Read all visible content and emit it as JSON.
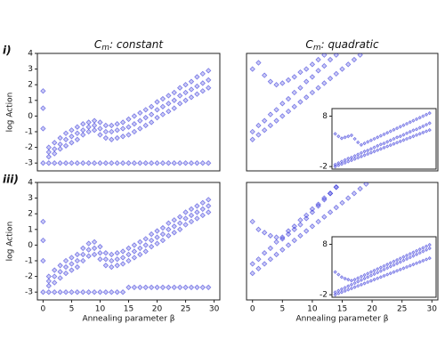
{
  "chart_data": [
    {
      "type": "scatter",
      "panel_label": "i)",
      "title_symbol": "C",
      "title_subscript": "m",
      "title": ": constant",
      "ylabel": "log Action",
      "color": "#2f2fd8",
      "x": [
        0,
        1,
        2,
        3,
        4,
        5,
        6,
        7,
        8,
        9,
        10,
        11,
        12,
        13,
        14,
        15,
        16,
        17,
        18,
        19,
        20,
        21,
        22,
        23,
        24,
        25,
        26,
        27,
        28,
        29
      ],
      "xlim": [
        -1,
        31
      ],
      "ylim": [
        -3.5,
        4
      ],
      "yticks": [
        -3,
        -2,
        -1,
        0,
        1,
        2,
        3,
        4
      ],
      "series": [
        {
          "values": [
            -3,
            -3,
            -3,
            -3,
            -3,
            -3,
            -3,
            -3,
            -3,
            -3,
            -3,
            -3,
            -3,
            -3,
            -3,
            -3,
            -3,
            -3,
            -3,
            -3,
            -3,
            -3,
            -3,
            -3,
            -3,
            -3,
            -3,
            -3,
            -3,
            -3
          ]
        },
        {
          "values": [
            0.5,
            -2.3,
            -2.1,
            -1.8,
            -1.5,
            -1.3,
            -1.1,
            -0.9,
            -0.7,
            -0.6,
            -0.8,
            -1.0,
            -1.0,
            -0.9,
            -0.8,
            -0.7,
            -0.5,
            -0.3,
            -0.1,
            0.1,
            0.4,
            0.6,
            0.8,
            1.0,
            1.3,
            1.5,
            1.7,
            1.9,
            2.1,
            2.3
          ]
        },
        {
          "values": [
            1.6,
            -2.0,
            -1.7,
            -1.4,
            -1.1,
            -0.9,
            -0.7,
            -0.5,
            -0.4,
            -0.3,
            -0.4,
            -0.6,
            -0.6,
            -0.5,
            -0.4,
            -0.2,
            0.0,
            0.2,
            0.4,
            0.6,
            0.9,
            1.1,
            1.3,
            1.5,
            1.8,
            2.0,
            2.2,
            2.5,
            2.7,
            2.9
          ]
        },
        {
          "values": [
            -0.8,
            -2.6,
            -2.4,
            -2.1,
            -1.9,
            -1.7,
            -1.5,
            -1.2,
            -1.0,
            -0.9,
            -1.2,
            -1.4,
            -1.5,
            -1.4,
            -1.3,
            -1.2,
            -1.0,
            -0.8,
            -0.6,
            -0.4,
            -0.1,
            0.1,
            0.3,
            0.5,
            0.8,
            1.0,
            1.2,
            1.4,
            1.6,
            1.8
          ]
        }
      ]
    },
    {
      "type": "scatter",
      "title_symbol": "C",
      "title_subscript": "m",
      "title": ": quadratic",
      "color": "#2f2fd8",
      "x": [
        0,
        1,
        2,
        3,
        4,
        5,
        6,
        7,
        8,
        9,
        10,
        11,
        12,
        13,
        14,
        15,
        16,
        17,
        18,
        19,
        20,
        21,
        22,
        23,
        24,
        25,
        26,
        27,
        28,
        29
      ],
      "xlim": [
        -1,
        31
      ],
      "ylim": [
        -3.5,
        4
      ],
      "series": [
        {
          "values": [
            -1.5,
            -1.2,
            -0.9,
            -0.6,
            -0.3,
            0.0,
            0.3,
            0.6,
            0.9,
            1.2,
            1.5,
            1.8,
            2.1,
            2.4,
            2.7,
            3.0,
            3.3,
            3.6,
            3.9,
            null,
            null,
            null,
            null,
            null,
            null,
            null,
            null,
            null,
            null,
            null
          ]
        },
        {
          "values": [
            -1.0,
            -0.6,
            -0.3,
            0.1,
            0.4,
            0.8,
            1.1,
            1.5,
            1.8,
            2.2,
            2.5,
            2.9,
            3.2,
            3.6,
            3.9,
            null,
            null,
            null,
            null,
            null,
            null,
            null,
            null,
            null,
            null,
            null,
            null,
            null,
            null,
            null
          ]
        },
        {
          "values": [
            3.0,
            3.4,
            2.6,
            2.2,
            2.0,
            2.1,
            2.3,
            2.5,
            2.8,
            3.0,
            3.3,
            3.6,
            3.9,
            null,
            null,
            null,
            null,
            null,
            null,
            null,
            null,
            null,
            null,
            null,
            null,
            null,
            null,
            null,
            null,
            null
          ]
        }
      ],
      "inset": {
        "type": "scatter",
        "color": "#2f2fd8",
        "x": [
          0,
          1,
          2,
          3,
          4,
          5,
          6,
          7,
          8,
          9,
          10,
          11,
          12,
          13,
          14,
          15,
          16,
          17,
          18,
          19,
          20,
          21,
          22,
          23,
          24,
          25,
          26,
          27,
          28,
          29
        ],
        "xlim": [
          -1,
          31
        ],
        "ylim": [
          -2.5,
          9.5
        ],
        "yticks": [
          -2,
          8
        ],
        "series": [
          {
            "values": [
              -2.0,
              -1.75,
              -1.5,
              -1.25,
              -1.0,
              -0.75,
              -0.5,
              -0.25,
              0.0,
              0.25,
              0.5,
              0.75,
              1.0,
              1.25,
              1.5,
              1.75,
              2.0,
              2.25,
              2.5,
              2.75,
              3.0,
              3.25,
              3.5,
              3.75,
              4.0,
              4.25,
              4.5,
              4.75,
              5.0,
              5.25
            ]
          },
          {
            "values": [
              -1.6,
              -1.3,
              -1.0,
              -0.7,
              -0.4,
              -0.2,
              0.1,
              0.4,
              0.7,
              1.0,
              1.2,
              1.5,
              1.8,
              2.1,
              2.4,
              2.6,
              2.9,
              3.2,
              3.5,
              3.8,
              4.0,
              4.3,
              4.6,
              4.9,
              5.2,
              5.4,
              5.7,
              6.0,
              6.3,
              6.6
            ]
          },
          {
            "values": [
              4.5,
              4.0,
              3.6,
              3.8,
              4.0,
              4.2,
              3.5,
              2.8,
              2.3,
              2.6,
              2.9,
              3.2,
              3.5,
              3.8,
              4.1,
              4.4,
              4.7,
              5.0,
              5.3,
              5.6,
              5.9,
              6.2,
              6.5,
              6.8,
              7.1,
              7.4,
              7.7,
              8.0,
              8.3,
              8.6
            ]
          }
        ]
      }
    },
    {
      "type": "scatter",
      "panel_label": "iii)",
      "ylabel": "log Action",
      "xlabel": "Annealing parameter β",
      "color": "#2f2fd8",
      "x": [
        0,
        1,
        2,
        3,
        4,
        5,
        6,
        7,
        8,
        9,
        10,
        11,
        12,
        13,
        14,
        15,
        16,
        17,
        18,
        19,
        20,
        21,
        22,
        23,
        24,
        25,
        26,
        27,
        28,
        29
      ],
      "xlim": [
        -1,
        31
      ],
      "ylim": [
        -3.5,
        4
      ],
      "yticks": [
        -3,
        -2,
        -1,
        0,
        1,
        2,
        3,
        4
      ],
      "xticks": [
        0,
        5,
        10,
        15,
        20,
        25,
        30
      ],
      "series": [
        {
          "values": [
            -3,
            -3,
            -3,
            -3,
            -3,
            -3,
            -3,
            -3,
            -3,
            -3,
            -3,
            -3,
            -3,
            -3,
            -3,
            -2.7,
            -2.7,
            -2.7,
            -2.7,
            -2.7,
            -2.7,
            -2.7,
            -2.7,
            -2.7,
            -2.7,
            -2.7,
            -2.7,
            -2.7,
            -2.7,
            -2.7
          ]
        },
        {
          "values": [
            0.3,
            -2.3,
            -2.0,
            -1.7,
            -1.4,
            -1.2,
            -1.0,
            -0.6,
            -0.3,
            -0.2,
            -0.5,
            -0.9,
            -1.0,
            -0.9,
            -0.8,
            -0.6,
            -0.4,
            -0.2,
            0.0,
            0.3,
            0.5,
            0.7,
            1.0,
            1.2,
            1.4,
            1.7,
            1.9,
            2.1,
            2.3,
            2.5
          ]
        },
        {
          "values": [
            1.5,
            -2.0,
            -1.6,
            -1.3,
            -1.0,
            -0.8,
            -0.6,
            -0.2,
            0.1,
            0.2,
            -0.1,
            -0.5,
            -0.6,
            -0.5,
            -0.4,
            -0.2,
            0.0,
            0.2,
            0.4,
            0.7,
            0.9,
            1.1,
            1.4,
            1.6,
            1.8,
            2.1,
            2.3,
            2.5,
            2.7,
            2.9
          ]
        },
        {
          "values": [
            -1.0,
            -2.6,
            -2.4,
            -2.1,
            -1.8,
            -1.6,
            -1.4,
            -1.0,
            -0.7,
            -0.6,
            -0.9,
            -1.3,
            -1.4,
            -1.3,
            -1.2,
            -1.0,
            -0.8,
            -0.6,
            -0.4,
            -0.1,
            0.1,
            0.3,
            0.6,
            0.8,
            1.0,
            1.3,
            1.5,
            1.7,
            1.9,
            2.1
          ]
        }
      ]
    },
    {
      "type": "scatter",
      "xlabel": "Annealing parameter β",
      "color": "#2f2fd8",
      "x": [
        0,
        1,
        2,
        3,
        4,
        5,
        6,
        7,
        8,
        9,
        10,
        11,
        12,
        13,
        14,
        15,
        16,
        17,
        18,
        19,
        20,
        21,
        22,
        23,
        24,
        25,
        26,
        27,
        28,
        29
      ],
      "xlim": [
        -1,
        31
      ],
      "ylim": [
        -3.5,
        4
      ],
      "xticks": [
        0,
        5,
        10,
        15,
        20,
        25,
        30
      ],
      "series": [
        {
          "values": [
            -1.8,
            -1.5,
            -1.2,
            -0.9,
            -0.6,
            -0.3,
            0.0,
            0.3,
            0.6,
            0.9,
            1.2,
            1.5,
            1.8,
            2.1,
            2.4,
            2.7,
            3.0,
            3.3,
            3.6,
            3.9,
            null,
            null,
            null,
            null,
            null,
            null,
            null,
            null,
            null,
            null
          ]
        },
        {
          "values": [
            -1.2,
            -0.9,
            -0.5,
            -0.2,
            0.2,
            0.5,
            0.9,
            1.2,
            1.6,
            1.9,
            2.3,
            2.6,
            3.0,
            3.3,
            3.7,
            null,
            null,
            null,
            null,
            null,
            null,
            null,
            null,
            null,
            null,
            null,
            null,
            null,
            null,
            null
          ]
        },
        {
          "values": [
            1.5,
            1.0,
            0.8,
            0.6,
            0.5,
            0.4,
            0.7,
            1.0,
            1.3,
            1.7,
            2.1,
            2.5,
            2.9,
            3.3,
            3.7,
            null,
            null,
            null,
            null,
            null,
            null,
            null,
            null,
            null,
            null,
            null,
            null,
            null,
            null,
            null
          ]
        }
      ],
      "inset": {
        "type": "scatter",
        "color": "#2f2fd8",
        "x": [
          0,
          1,
          2,
          3,
          4,
          5,
          6,
          7,
          8,
          9,
          10,
          11,
          12,
          13,
          14,
          15,
          16,
          17,
          18,
          19,
          20,
          21,
          22,
          23,
          24,
          25,
          26,
          27,
          28,
          29
        ],
        "xlim": [
          -1,
          31
        ],
        "ylim": [
          -2.5,
          9.5
        ],
        "yticks": [
          -2,
          8
        ],
        "series": [
          {
            "values": [
              -2.0,
              -1.75,
              -1.5,
              -1.25,
              -1.0,
              -0.75,
              -0.5,
              -0.25,
              0.0,
              0.25,
              0.5,
              0.75,
              1.0,
              1.25,
              1.5,
              1.75,
              2.0,
              2.25,
              2.5,
              2.75,
              3.0,
              3.25,
              3.5,
              3.75,
              4.0,
              4.25,
              4.5,
              4.75,
              5.0,
              5.25
            ]
          },
          {
            "values": [
              -1.5,
              -1.2,
              -0.9,
              -0.6,
              -0.3,
              0.0,
              0.3,
              0.6,
              0.9,
              1.2,
              1.5,
              1.8,
              2.1,
              2.4,
              2.7,
              3.0,
              3.3,
              3.6,
              3.9,
              4.2,
              4.5,
              4.8,
              5.1,
              5.4,
              5.7,
              6.0,
              6.3,
              6.6,
              6.9,
              7.2
            ]
          },
          {
            "values": [
              2.5,
              2.0,
              1.5,
              1.2,
              1.0,
              0.8,
              1.0,
              1.3,
              1.6,
              1.9,
              2.2,
              2.5,
              2.8,
              3.1,
              3.4,
              3.7,
              4.0,
              4.3,
              4.6,
              4.9,
              5.2,
              5.5,
              5.8,
              6.1,
              6.4,
              6.7,
              7.0,
              7.3,
              7.6,
              7.9
            ]
          }
        ]
      }
    }
  ]
}
